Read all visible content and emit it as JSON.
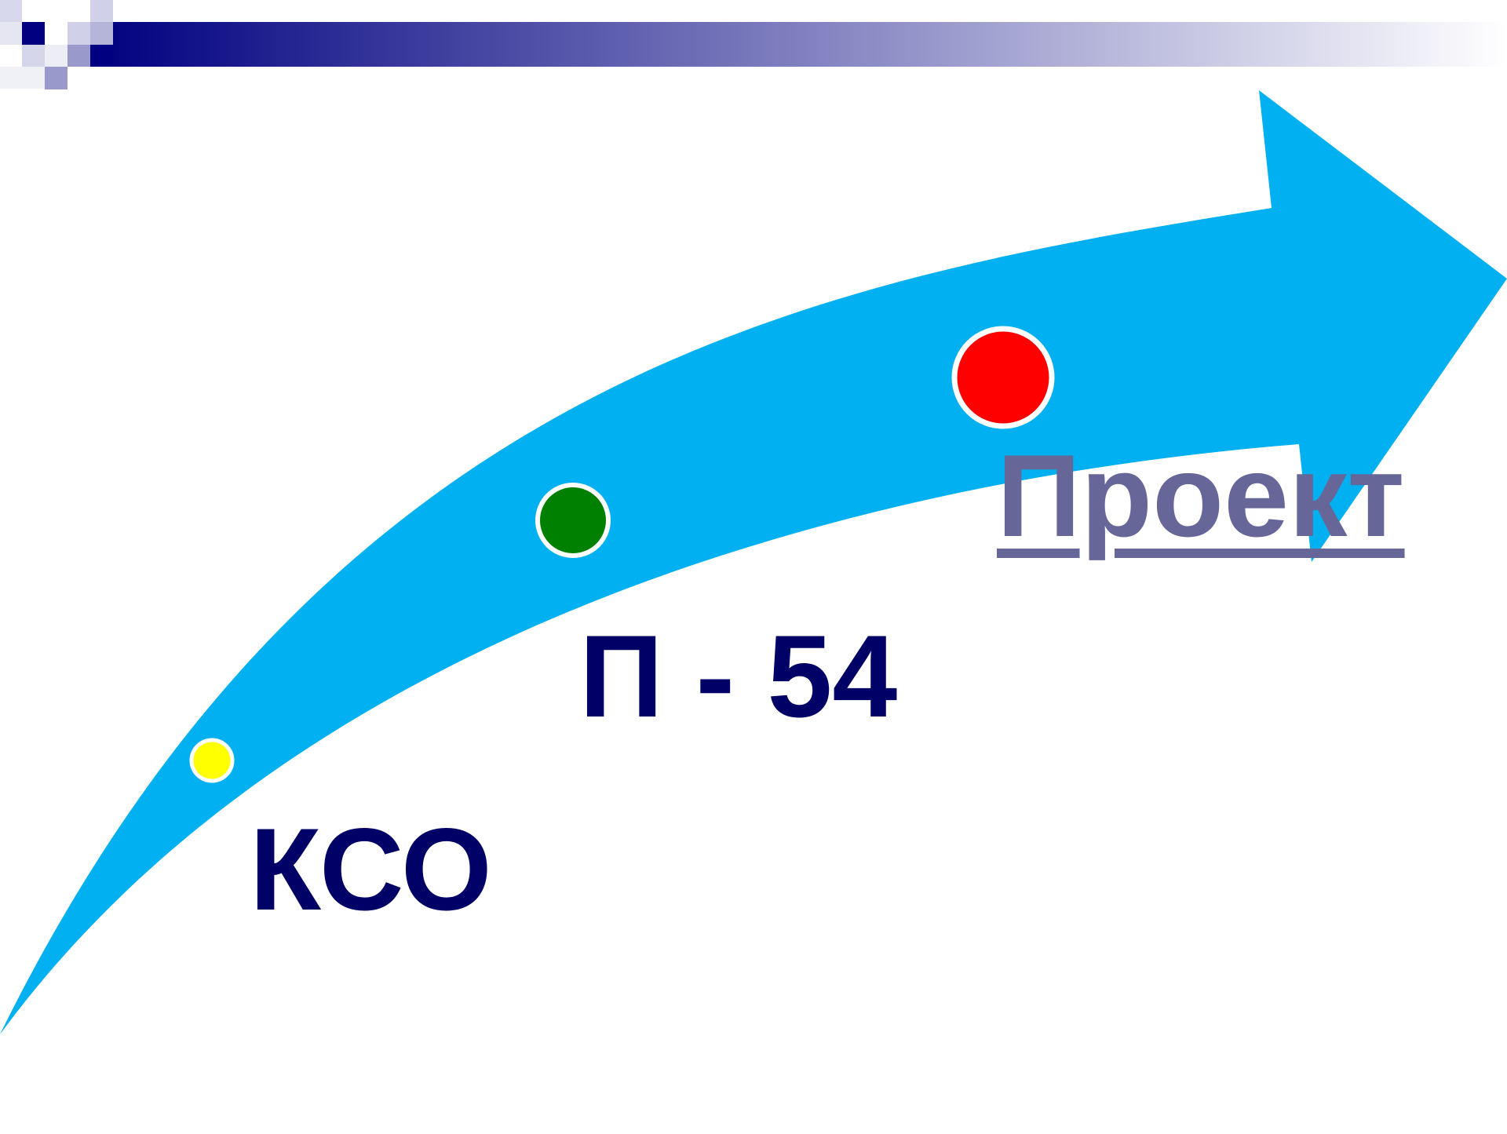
{
  "colors": {
    "header_dark": "#000080",
    "header_light": "#ffffff",
    "arrow": "#00b0f0",
    "label_dark": "#000066",
    "label_muted": "#666699"
  },
  "stages": [
    {
      "label": "КСО",
      "dot_color": "#ffff00"
    },
    {
      "label": "П - 54",
      "dot_color": "#008000"
    },
    {
      "label": "Проект",
      "dot_color": "#ff0000"
    }
  ]
}
